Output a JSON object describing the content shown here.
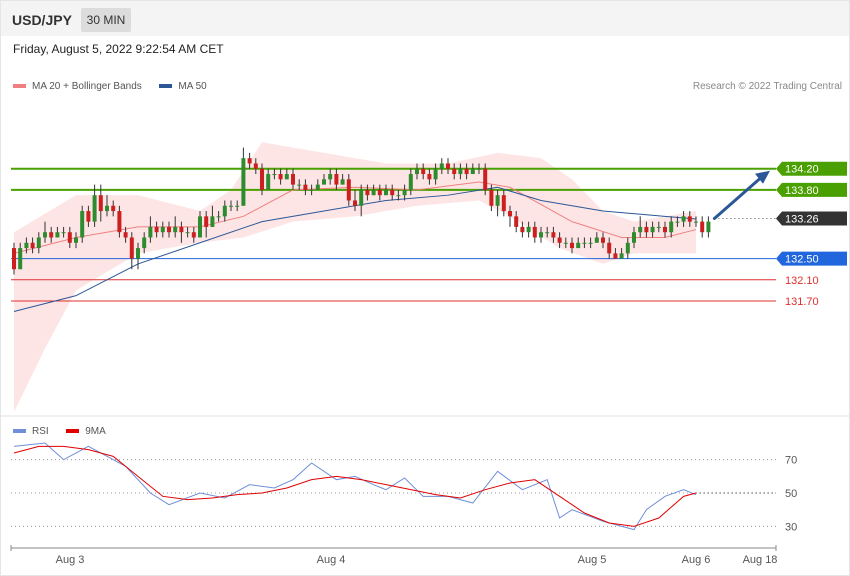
{
  "header": {
    "symbol": "USD/JPY",
    "timeframe": "30 MIN"
  },
  "timestamp": "Friday, August 5, 2022 9:22:54 AM CET",
  "legend": {
    "price": [
      {
        "label": "MA 20 + Bollinger Bands",
        "color": "#f08080"
      },
      {
        "label": "MA 50",
        "color": "#2b5797"
      }
    ],
    "rsi": [
      {
        "label": "RSI",
        "color": "#6f8fd8"
      },
      {
        "label": "9MA",
        "color": "#e00000"
      }
    ]
  },
  "credit": "Research © 2022 Trading Central",
  "chart_data": [
    {
      "type": "candlestick",
      "title": "",
      "ylim": [
        129.6,
        135.5
      ],
      "last_price": "133.26",
      "levels": [
        {
          "value": "134.20",
          "kind": "resistance",
          "color": "#4aa000"
        },
        {
          "value": "133.80",
          "kind": "resistance",
          "color": "#4aa000"
        },
        {
          "value": "133.26",
          "kind": "current",
          "color": "#333333"
        },
        {
          "value": "132.50",
          "kind": "support",
          "color": "#2266dd"
        },
        {
          "value": "132.10",
          "kind": "support",
          "color": "#e03030"
        },
        {
          "value": "131.70",
          "kind": "support",
          "color": "#e03030"
        }
      ],
      "forecast_arrow": {
        "from": 133.26,
        "to": 134.2,
        "direction": "up",
        "color": "#2b5797"
      },
      "candles": [
        [
          132.7,
          132.3,
          132.8,
          132.2
        ],
        [
          132.3,
          132.7,
          132.8,
          132.3
        ],
        [
          132.7,
          132.8,
          132.9,
          132.6
        ],
        [
          132.8,
          132.7,
          132.9,
          132.6
        ],
        [
          132.7,
          132.9,
          133.0,
          132.6
        ],
        [
          132.9,
          133.0,
          133.2,
          132.8
        ],
        [
          133.0,
          132.9,
          133.1,
          132.8
        ],
        [
          132.9,
          133.0,
          133.1,
          132.9
        ],
        [
          133.0,
          133.0,
          133.1,
          132.9
        ],
        [
          133.0,
          132.8,
          133.1,
          132.7
        ],
        [
          132.8,
          132.9,
          133.0,
          132.7
        ],
        [
          132.9,
          133.4,
          133.5,
          132.8
        ],
        [
          133.4,
          133.2,
          133.5,
          133.1
        ],
        [
          133.2,
          133.7,
          133.9,
          133.1
        ],
        [
          133.7,
          133.4,
          133.9,
          133.2
        ],
        [
          133.4,
          133.5,
          133.7,
          133.3
        ],
        [
          133.5,
          133.4,
          133.6,
          133.3
        ],
        [
          133.4,
          133.0,
          133.5,
          132.9
        ],
        [
          133.0,
          132.9,
          133.1,
          132.8
        ],
        [
          132.9,
          132.5,
          133.0,
          132.3
        ],
        [
          132.5,
          132.7,
          132.8,
          132.3
        ],
        [
          132.7,
          132.9,
          133.0,
          132.6
        ],
        [
          132.9,
          133.1,
          133.3,
          132.8
        ],
        [
          133.1,
          133.0,
          133.2,
          132.9
        ],
        [
          133.0,
          133.1,
          133.2,
          132.9
        ],
        [
          133.1,
          133.0,
          133.2,
          132.9
        ],
        [
          133.0,
          133.1,
          133.3,
          132.9
        ],
        [
          133.1,
          133.0,
          133.2,
          132.8
        ],
        [
          133.0,
          133.0,
          133.1,
          132.9
        ],
        [
          133.0,
          132.9,
          133.1,
          132.8
        ],
        [
          132.9,
          133.3,
          133.4,
          132.9
        ],
        [
          133.3,
          133.1,
          133.4,
          132.9
        ],
        [
          133.1,
          133.3,
          133.5,
          133.1
        ],
        [
          133.3,
          133.3,
          133.4,
          133.2
        ],
        [
          133.3,
          133.5,
          133.6,
          133.2
        ],
        [
          133.5,
          133.5,
          133.6,
          133.4
        ],
        [
          133.5,
          133.5,
          133.6,
          133.4
        ],
        [
          133.5,
          134.4,
          134.6,
          133.5
        ],
        [
          134.4,
          134.3,
          134.5,
          134.2
        ],
        [
          134.3,
          134.2,
          134.4,
          134.1
        ],
        [
          134.2,
          133.8,
          134.3,
          133.7
        ],
        [
          133.8,
          134.1,
          134.2,
          133.8
        ],
        [
          134.1,
          134.1,
          134.2,
          134.0
        ],
        [
          134.1,
          134.0,
          134.2,
          133.9
        ],
        [
          134.0,
          134.1,
          134.2,
          134.0
        ],
        [
          134.1,
          133.9,
          134.2,
          133.8
        ],
        [
          133.9,
          133.9,
          134.0,
          133.8
        ],
        [
          133.9,
          133.8,
          134.0,
          133.7
        ],
        [
          133.8,
          133.8,
          133.9,
          133.7
        ],
        [
          133.8,
          133.9,
          134.0,
          133.8
        ],
        [
          133.9,
          134.0,
          134.1,
          133.9
        ],
        [
          134.0,
          134.1,
          134.2,
          133.9
        ],
        [
          134.1,
          133.9,
          134.2,
          133.8
        ],
        [
          133.9,
          134.0,
          134.1,
          133.9
        ],
        [
          134.0,
          133.6,
          134.1,
          133.5
        ],
        [
          133.6,
          133.5,
          133.8,
          133.4
        ],
        [
          133.5,
          133.8,
          133.9,
          133.3
        ],
        [
          133.8,
          133.7,
          133.9,
          133.6
        ],
        [
          133.7,
          133.8,
          133.9,
          133.7
        ],
        [
          133.8,
          133.7,
          133.9,
          133.6
        ],
        [
          133.7,
          133.8,
          133.9,
          133.7
        ],
        [
          133.8,
          133.7,
          133.9,
          133.6
        ],
        [
          133.7,
          133.7,
          133.8,
          133.6
        ],
        [
          133.7,
          133.8,
          133.9,
          133.6
        ],
        [
          133.8,
          134.1,
          134.2,
          133.7
        ],
        [
          134.1,
          134.2,
          134.3,
          134.0
        ],
        [
          134.2,
          134.1,
          134.3,
          134.0
        ],
        [
          134.1,
          134.0,
          134.2,
          133.9
        ],
        [
          134.0,
          134.2,
          134.3,
          133.9
        ],
        [
          134.2,
          134.3,
          134.4,
          134.1
        ],
        [
          134.3,
          134.2,
          134.4,
          134.1
        ],
        [
          134.2,
          134.1,
          134.3,
          134.0
        ],
        [
          134.1,
          134.2,
          134.3,
          134.0
        ],
        [
          134.2,
          134.1,
          134.3,
          134.0
        ],
        [
          134.1,
          134.2,
          134.3,
          134.1
        ],
        [
          134.2,
          134.2,
          134.3,
          134.1
        ],
        [
          134.2,
          133.8,
          134.3,
          133.7
        ],
        [
          133.8,
          133.5,
          133.9,
          133.4
        ],
        [
          133.5,
          133.7,
          133.8,
          133.3
        ],
        [
          133.7,
          133.4,
          133.8,
          133.3
        ],
        [
          133.4,
          133.3,
          133.5,
          133.1
        ],
        [
          133.3,
          133.1,
          133.4,
          133.0
        ],
        [
          133.1,
          133.0,
          133.2,
          132.9
        ],
        [
          133.0,
          133.1,
          133.2,
          132.9
        ],
        [
          133.1,
          132.9,
          133.2,
          132.8
        ],
        [
          132.9,
          133.0,
          133.1,
          132.8
        ],
        [
          133.0,
          133.0,
          133.1,
          132.9
        ],
        [
          133.0,
          132.9,
          133.1,
          132.8
        ],
        [
          132.9,
          132.8,
          133.0,
          132.7
        ],
        [
          132.8,
          132.8,
          132.9,
          132.7
        ],
        [
          132.8,
          132.7,
          132.9,
          132.6
        ],
        [
          132.7,
          132.8,
          132.9,
          132.7
        ],
        [
          132.8,
          132.8,
          132.9,
          132.7
        ],
        [
          132.8,
          132.8,
          132.9,
          132.7
        ],
        [
          132.8,
          132.9,
          133.0,
          132.8
        ],
        [
          132.9,
          132.8,
          133.0,
          132.7
        ],
        [
          132.8,
          132.6,
          132.9,
          132.5
        ],
        [
          132.6,
          132.5,
          132.7,
          132.5
        ],
        [
          132.5,
          132.6,
          132.7,
          132.5
        ],
        [
          132.6,
          132.8,
          132.9,
          132.5
        ],
        [
          132.8,
          133.0,
          133.1,
          132.7
        ],
        [
          133.0,
          133.1,
          133.3,
          132.9
        ],
        [
          133.1,
          133.0,
          133.2,
          132.9
        ],
        [
          133.0,
          133.1,
          133.2,
          132.9
        ],
        [
          133.1,
          133.1,
          133.2,
          133.0
        ],
        [
          133.1,
          133.0,
          133.2,
          132.9
        ],
        [
          133.0,
          133.2,
          133.3,
          132.9
        ],
        [
          133.2,
          133.2,
          133.3,
          133.1
        ],
        [
          133.2,
          133.3,
          133.4,
          133.1
        ],
        [
          133.3,
          133.2,
          133.4,
          133.1
        ],
        [
          133.2,
          133.2,
          133.3,
          133.1
        ],
        [
          133.2,
          133.0,
          133.3,
          132.9
        ],
        [
          133.0,
          133.2,
          133.3,
          132.9
        ]
      ],
      "ma20": [
        [
          0,
          132.6
        ],
        [
          10,
          132.9
        ],
        [
          20,
          133.1
        ],
        [
          30,
          133.1
        ],
        [
          37,
          133.3
        ],
        [
          45,
          133.8
        ],
        [
          55,
          133.85
        ],
        [
          65,
          133.8
        ],
        [
          75,
          133.95
        ],
        [
          80,
          133.85
        ],
        [
          90,
          133.2
        ],
        [
          98,
          132.9
        ],
        [
          105,
          132.9
        ],
        [
          110,
          133.05
        ]
      ],
      "ma50": [
        [
          0,
          131.5
        ],
        [
          10,
          131.8
        ],
        [
          20,
          132.4
        ],
        [
          30,
          132.8
        ],
        [
          40,
          133.2
        ],
        [
          50,
          133.4
        ],
        [
          60,
          133.6
        ],
        [
          70,
          133.7
        ],
        [
          78,
          133.85
        ],
        [
          85,
          133.6
        ],
        [
          95,
          133.4
        ],
        [
          105,
          133.3
        ],
        [
          110,
          133.25
        ]
      ],
      "bb_upper": [
        [
          0,
          133.0
        ],
        [
          10,
          133.7
        ],
        [
          20,
          133.7
        ],
        [
          30,
          133.4
        ],
        [
          35,
          133.8
        ],
        [
          40,
          134.7
        ],
        [
          50,
          134.5
        ],
        [
          60,
          134.3
        ],
        [
          70,
          134.3
        ],
        [
          78,
          134.5
        ],
        [
          85,
          134.4
        ],
        [
          90,
          134.0
        ],
        [
          95,
          133.4
        ],
        [
          100,
          133.2
        ],
        [
          105,
          133.3
        ],
        [
          110,
          133.4
        ]
      ],
      "bb_lower": [
        [
          0,
          129.6
        ],
        [
          5,
          130.8
        ],
        [
          10,
          131.9
        ],
        [
          20,
          132.6
        ],
        [
          30,
          132.8
        ],
        [
          37,
          132.9
        ],
        [
          45,
          133.2
        ],
        [
          55,
          133.3
        ],
        [
          65,
          133.5
        ],
        [
          75,
          133.6
        ],
        [
          80,
          133.3
        ],
        [
          88,
          132.7
        ],
        [
          95,
          132.4
        ],
        [
          100,
          132.6
        ],
        [
          105,
          132.6
        ],
        [
          110,
          132.6
        ]
      ]
    },
    {
      "type": "line",
      "title": "",
      "ylim": [
        20,
        80
      ],
      "yticks": [
        "70",
        "50",
        "30"
      ],
      "series": [
        {
          "name": "RSI",
          "color": "#6f8fd8",
          "values": [
            [
              0,
              78
            ],
            [
              5,
              80
            ],
            [
              8,
              70
            ],
            [
              12,
              78
            ],
            [
              15,
              72
            ],
            [
              18,
              66
            ],
            [
              22,
              50
            ],
            [
              25,
              43
            ],
            [
              30,
              50
            ],
            [
              34,
              47
            ],
            [
              38,
              55
            ],
            [
              42,
              53
            ],
            [
              45,
              58
            ],
            [
              48,
              68
            ],
            [
              52,
              58
            ],
            [
              55,
              60
            ],
            [
              58,
              55
            ],
            [
              60,
              52
            ],
            [
              63,
              59
            ],
            [
              66,
              48
            ],
            [
              70,
              48
            ],
            [
              74,
              44
            ],
            [
              78,
              63
            ],
            [
              82,
              52
            ],
            [
              86,
              58
            ],
            [
              88,
              35
            ],
            [
              90,
              40
            ],
            [
              95,
              33
            ],
            [
              100,
              28
            ],
            [
              102,
              40
            ],
            [
              105,
              48
            ],
            [
              108,
              52
            ],
            [
              110,
              49
            ]
          ]
        },
        {
          "name": "9MA",
          "color": "#e00000",
          "values": [
            [
              0,
              74
            ],
            [
              4,
              78
            ],
            [
              8,
              78
            ],
            [
              12,
              76
            ],
            [
              16,
              72
            ],
            [
              20,
              60
            ],
            [
              24,
              48
            ],
            [
              28,
              46
            ],
            [
              32,
              47
            ],
            [
              36,
              49
            ],
            [
              40,
              50
            ],
            [
              44,
              53
            ],
            [
              48,
              58
            ],
            [
              52,
              60
            ],
            [
              56,
              58
            ],
            [
              60,
              55
            ],
            [
              64,
              52
            ],
            [
              68,
              49
            ],
            [
              72,
              47
            ],
            [
              76,
              52
            ],
            [
              80,
              56
            ],
            [
              84,
              58
            ],
            [
              88,
              48
            ],
            [
              92,
              38
            ],
            [
              96,
              32
            ],
            [
              100,
              30
            ],
            [
              104,
              35
            ],
            [
              108,
              48
            ],
            [
              110,
              50
            ]
          ]
        }
      ],
      "ref_lines": [
        "70",
        "50",
        "30"
      ],
      "x_labels": [
        "Aug 3",
        "Aug 4",
        "Aug 5",
        "Aug 6",
        "Aug 18"
      ]
    }
  ]
}
